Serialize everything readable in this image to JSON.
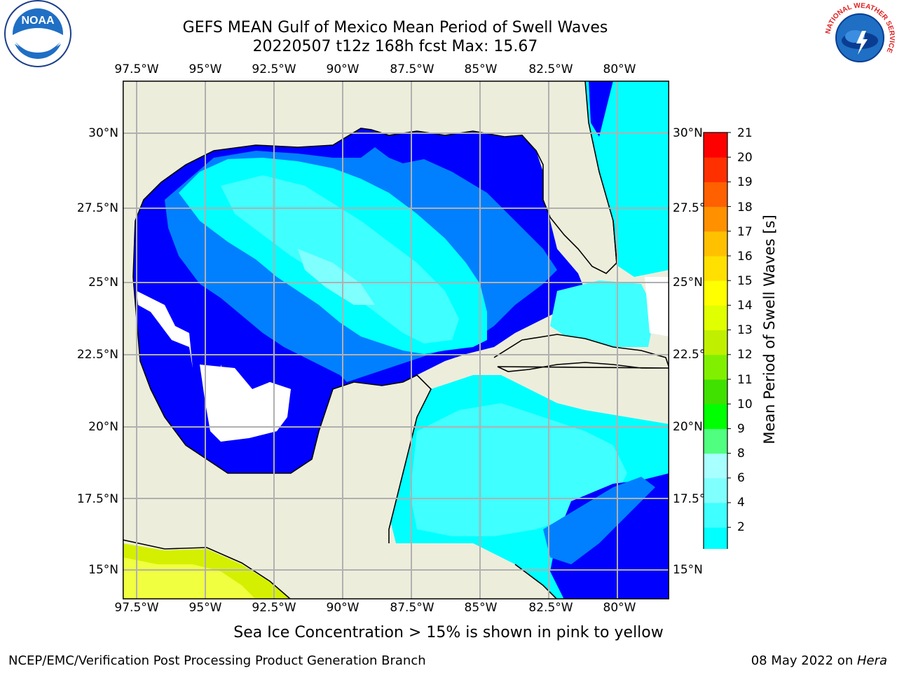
{
  "title": {
    "line1": "GEFS MEAN Gulf of Mexico Mean Period of Swell Waves",
    "line2": "20220507 t12z 168h fcst   Max: 15.67"
  },
  "map": {
    "lon_labels": [
      "97.5°W",
      "95°W",
      "92.5°W",
      "90°W",
      "87.5°W",
      "85°W",
      "82.5°W",
      "80°W"
    ],
    "lat_labels": [
      "30°N",
      "27.5°N",
      "25°N",
      "22.5°N",
      "20°N",
      "17.5°N",
      "15°N"
    ],
    "colors": {
      "land": "#ededdc",
      "missing": "#ffffff",
      "grid": "#b0b0b0",
      "coast": "#000000"
    }
  },
  "colorbar": {
    "title": "Mean Period of Swell Waves [s]",
    "tick_labels": [
      "21",
      "20",
      "19",
      "18",
      "17",
      "16",
      "15",
      "14",
      "13",
      "12",
      "11",
      "10",
      "9",
      "8",
      "6",
      "4",
      "2"
    ],
    "colors": [
      "#0000ff",
      "#0080ff",
      "#00ffff",
      "#40ffff",
      "#80ffff",
      "#a8ffff",
      "#50ff80",
      "#00ff00",
      "#40e000",
      "#80f000",
      "#c0f000",
      "#e0ff00",
      "#ffff00",
      "#ffe000",
      "#ffc000",
      "#ff9000",
      "#ff6000",
      "#ff3000",
      "#ff0000"
    ],
    "under_color": "#0000ff"
  },
  "note": "Sea Ice Concentration > 15% is shown in pink to yellow",
  "footer": {
    "left": "NCEP/EMC/Verification Post Processing Product Generation Branch",
    "date": "08 May 2022 on ",
    "host": "Hera"
  },
  "logos": {
    "noaa": "NOAA",
    "nws_ring": "NATIONAL WEATHER SERVICE"
  }
}
